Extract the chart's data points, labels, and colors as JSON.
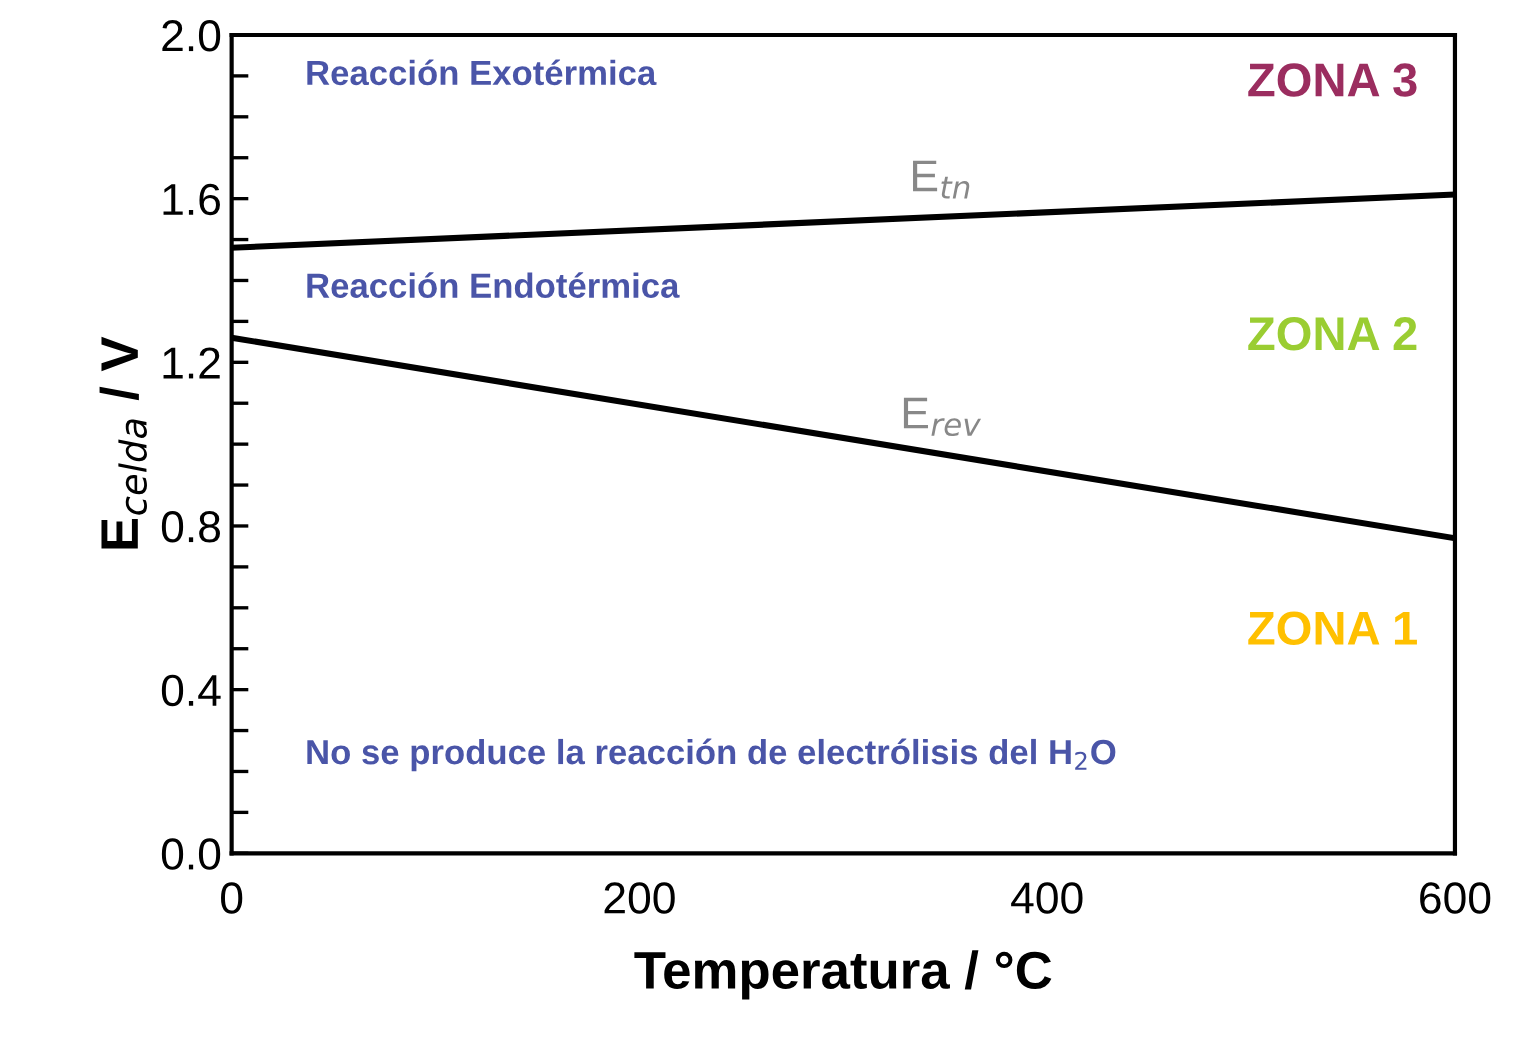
{
  "chart_data": {
    "type": "line",
    "xlabel": "Temperatura / °C",
    "ylabel": "E$_{celda}$ / V",
    "x": [
      0,
      600
    ],
    "series": [
      {
        "name": "E$_{tn}$",
        "color": "#000000",
        "values": [
          1.48,
          1.61
        ]
      },
      {
        "name": "E$_{rev}$",
        "color": "#000000",
        "values": [
          1.26,
          0.77
        ]
      }
    ],
    "xlim": [
      0,
      600
    ],
    "xticks": [
      0,
      200,
      400,
      600
    ],
    "ylim": [
      0.0,
      2.0
    ],
    "yticks": [
      {
        "value": 0.0,
        "label": "0.0"
      },
      {
        "value": 0.1,
        "label": null
      },
      {
        "value": 0.2,
        "label": null
      },
      {
        "value": 0.3,
        "label": null
      },
      {
        "value": 0.4,
        "label": "0.4"
      },
      {
        "value": 0.5,
        "label": null
      },
      {
        "value": 0.6,
        "label": null
      },
      {
        "value": 0.7,
        "label": null
      },
      {
        "value": 0.8,
        "label": "0.8"
      },
      {
        "value": 0.9,
        "label": null
      },
      {
        "value": 1.0,
        "label": null
      },
      {
        "value": 1.1,
        "label": null
      },
      {
        "value": 1.2,
        "label": "1.2"
      },
      {
        "value": 1.3,
        "label": null
      },
      {
        "value": 1.4,
        "label": null
      },
      {
        "value": 1.5,
        "label": null
      },
      {
        "value": 1.6,
        "label": "1.6"
      },
      {
        "value": 1.7,
        "label": null
      },
      {
        "value": 1.8,
        "label": null
      },
      {
        "value": 1.9,
        "label": null
      },
      {
        "value": 2.0,
        "label": "2.0"
      }
    ],
    "annotations": [
      "Reacción Exotérmica",
      "Reacción Endotérmica",
      "No se produce la reacción de electrólisis del H$_{2}$O",
      "ZONA 3",
      "ZONA 2",
      "ZONA 1"
    ],
    "grid": false,
    "legend": false,
    "marker": "none",
    "line_style": "solid"
  }
}
